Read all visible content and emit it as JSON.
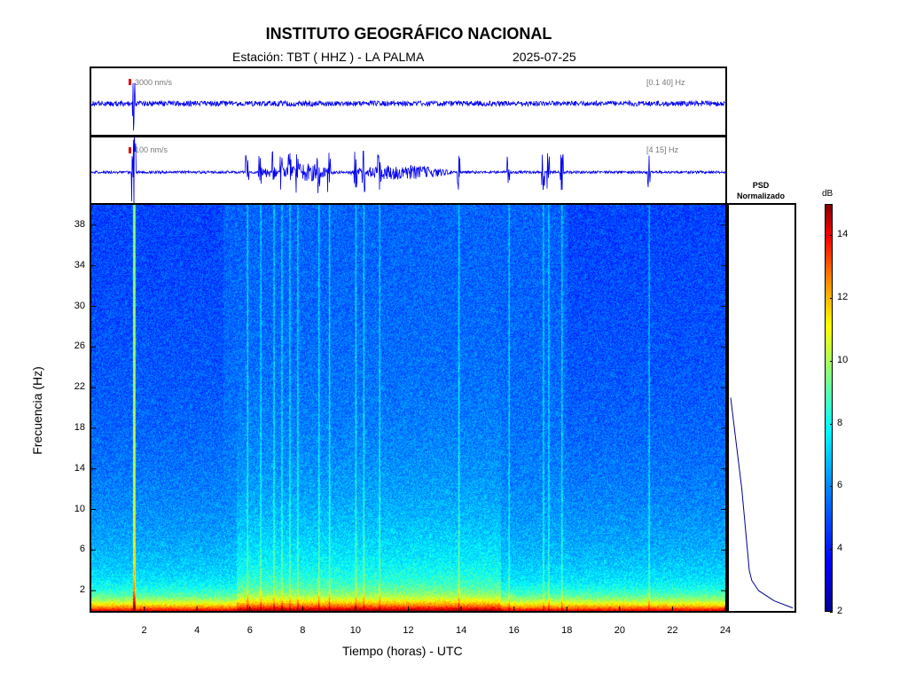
{
  "header": {
    "title": "INSTITUTO GEOGRÁFICO NACIONAL",
    "station": "Estación:  TBT ( HHZ ) - LA PALMA",
    "date": "2025-07-25"
  },
  "traces": [
    {
      "amplitude_label": "3000 nm/s",
      "band_label": "[0.1 40] Hz"
    },
    {
      "amplitude_label": "100 nm/s",
      "band_label": "[4 15] Hz"
    }
  ],
  "psd": {
    "title_line1": "PSD",
    "title_line2": "Normalizado"
  },
  "colorbar": {
    "unit": "dB",
    "ticks": [
      2,
      4,
      6,
      8,
      10,
      12,
      14
    ],
    "range": [
      2,
      15
    ]
  },
  "chart_data": {
    "type": "heatmap",
    "xlabel": "Tiempo (horas) - UTC",
    "ylabel": "Frecuencia  (Hz)",
    "xlim": [
      0,
      24
    ],
    "ylim": [
      0,
      40
    ],
    "xticks": [
      2,
      4,
      6,
      8,
      10,
      12,
      14,
      16,
      18,
      20,
      22,
      24
    ],
    "yticks": [
      2,
      6,
      10,
      14,
      18,
      22,
      26,
      30,
      34,
      38
    ],
    "colormap": "jet",
    "event_times_hours": [
      1.6,
      5.9,
      6.4,
      6.9,
      7.2,
      7.5,
      7.8,
      8.6,
      9.0,
      10.0,
      10.3,
      10.9,
      13.9,
      15.8,
      17.1,
      17.3,
      17.8,
      21.1
    ],
    "main_event_hour": 1.6,
    "psd_profile": [
      {
        "f": 0.3,
        "v": 1.0
      },
      {
        "f": 1,
        "v": 0.7
      },
      {
        "f": 2,
        "v": 0.45
      },
      {
        "f": 3,
        "v": 0.34
      },
      {
        "f": 4,
        "v": 0.3
      },
      {
        "f": 6,
        "v": 0.27
      },
      {
        "f": 8,
        "v": 0.24
      },
      {
        "f": 10,
        "v": 0.21
      },
      {
        "f": 12,
        "v": 0.18
      },
      {
        "f": 14,
        "v": 0.14
      },
      {
        "f": 16,
        "v": 0.1
      },
      {
        "f": 18,
        "v": 0.06
      },
      {
        "f": 20,
        "v": 0.02
      },
      {
        "f": 21,
        "v": 0.0
      }
    ]
  }
}
